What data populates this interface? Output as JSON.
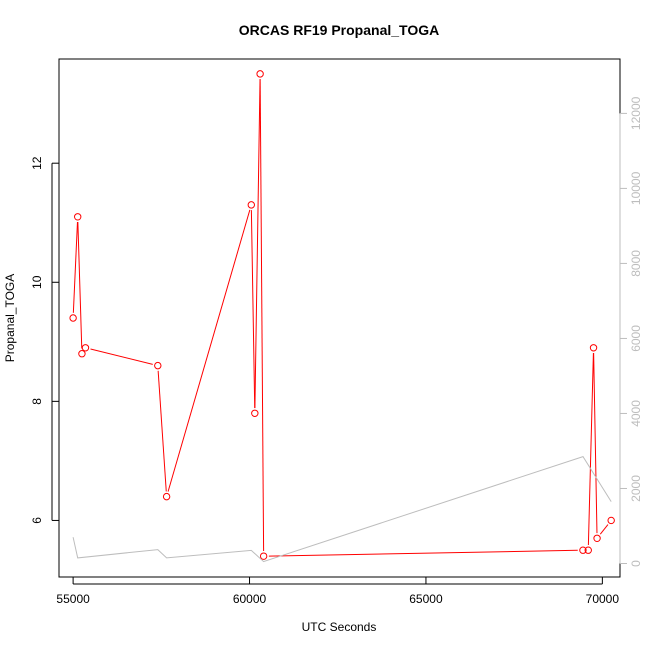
{
  "chart_data": {
    "type": "line",
    "title": "ORCAS RF19 Propanal_TOGA",
    "xlabel": "UTC Seconds",
    "ylabel": "Propanal_TOGA",
    "xlim": [
      54600,
      70500
    ],
    "ylim": [
      5.05,
      13.75
    ],
    "y2lim": [
      -360,
      13450
    ],
    "x_ticks": [
      55000,
      60000,
      65000,
      70000
    ],
    "y_ticks": [
      6,
      8,
      10,
      12
    ],
    "y2_ticks": [
      0,
      2000,
      4000,
      6000,
      8000,
      10000,
      12000
    ],
    "grid": false,
    "series": [
      {
        "axis": "left",
        "color": "#ff0000",
        "style": "line+open-circle",
        "x": [
          55000,
          55130,
          55250,
          55350,
          57400,
          57650,
          60050,
          60150,
          60300,
          60400,
          69450,
          69600,
          69750,
          69850,
          70250
        ],
        "y": [
          9.4,
          11.1,
          8.8,
          8.9,
          8.6,
          6.4,
          11.3,
          7.8,
          13.5,
          5.4,
          5.5,
          5.5,
          8.9,
          5.7,
          6.0
        ]
      },
      {
        "axis": "right",
        "color": "#bdbdbd",
        "style": "line",
        "x": [
          55000,
          55130,
          57400,
          57650,
          60050,
          60400,
          69450,
          70250
        ],
        "y": [
          700,
          150,
          370,
          150,
          350,
          50,
          2850,
          1650
        ]
      }
    ]
  }
}
